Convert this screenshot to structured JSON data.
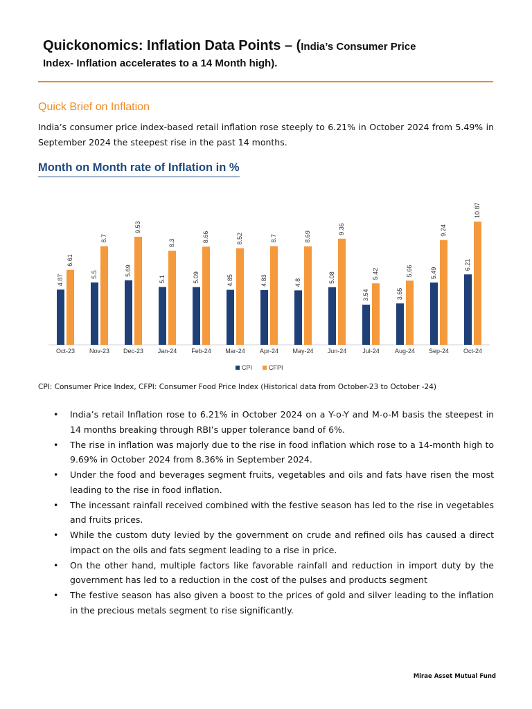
{
  "header": {
    "title_main": "Quickonomics: Inflation Data Points – (",
    "title_sub_1": "India’s Consumer Price",
    "title_sub_2": "Index- Inflation accelerates to a 14 Month high)."
  },
  "brief": {
    "heading": "Quick Brief on Inflation",
    "text": "India’s consumer price index-based retail inflation rose steeply to 6.21% in October 2024 from 5.49% in September 2024 the steepest rise in the past 14 months."
  },
  "chart_heading": "Month on Month rate of Inflation in %",
  "chart_data": {
    "type": "bar",
    "categories": [
      "Oct-23",
      "Nov-23",
      "Dec-23",
      "Jan-24",
      "Feb-24",
      "Mar-24",
      "Apr-24",
      "May-24",
      "Jun-24",
      "Jul-24",
      "Aug-24",
      "Sep-24",
      "Oct-24"
    ],
    "series": [
      {
        "name": "CPI",
        "color": "#1f3f77",
        "values": [
          4.87,
          5.5,
          5.69,
          5.1,
          5.09,
          4.85,
          4.83,
          4.8,
          5.08,
          3.54,
          3.65,
          5.49,
          6.21
        ]
      },
      {
        "name": "CFPI",
        "color": "#f5993d",
        "values": [
          6.61,
          8.7,
          9.53,
          8.3,
          8.66,
          8.52,
          8.7,
          8.69,
          9.36,
          5.42,
          5.66,
          9.24,
          10.87
        ]
      }
    ],
    "legend": "bottom"
  },
  "caption": "CPI: Consumer Price Index, CFPI: Consumer Food Price Index (Historical data from October-23 to October -24)",
  "bullets": [
    "India’s retail Inflation rose to 6.21% in October 2024 on a Y-o-Y and M-o-M basis the steepest in 14 months breaking through RBI’s upper tolerance band of 6%.",
    "The rise in inflation was majorly due to the rise in food inflation which rose to a 14-month high to 9.69% in October 2024 from 8.36% in September 2024.",
    "Under the food and beverages segment fruits, vegetables and oils and fats have risen the most leading to the rise in food inflation.",
    "The incessant rainfall received combined with the festive season has led to the rise in vegetables and fruits prices.",
    "While the custom duty levied by the government on crude and refined oils has caused a direct impact on the oils and fats segment leading to a rise in price.",
    "On the other hand, multiple factors like favorable rainfall and reduction in import duty by the government has led to a reduction in the cost of the pulses and products segment",
    "The festive season has also given a boost to the prices of gold and silver leading to the inflation in the precious metals segment to rise significantly."
  ],
  "footer": "Mirae Asset Mutual Fund"
}
